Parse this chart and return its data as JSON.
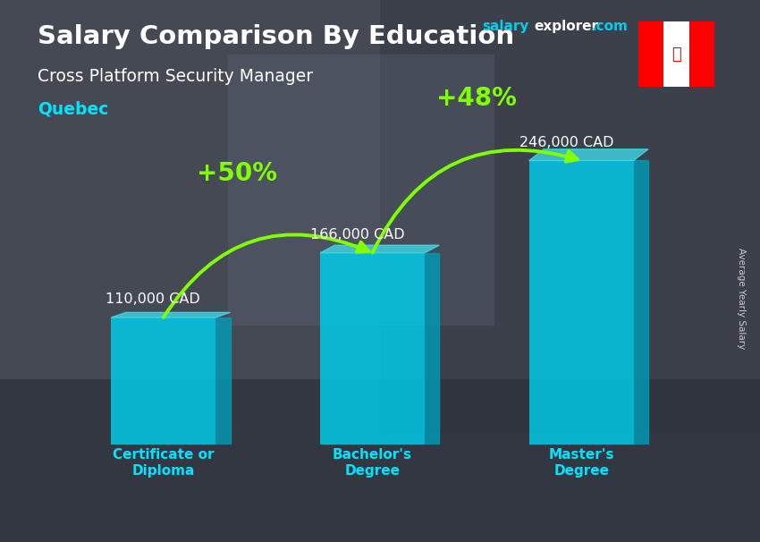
{
  "title": "Salary Comparison By Education",
  "subtitle": "Cross Platform Security Manager",
  "location": "Quebec",
  "website_text": "salaryexplorer.com",
  "website_salary_part": "salary",
  "website_explorer_part": "explorer",
  "website_com_part": ".com",
  "categories": [
    "Certificate or\nDiploma",
    "Bachelor's\nDegree",
    "Master's\nDegree"
  ],
  "values": [
    110000,
    166000,
    246000
  ],
  "value_labels": [
    "110,000 CAD",
    "166,000 CAD",
    "246,000 CAD"
  ],
  "pct_labels": [
    "+50%",
    "+48%"
  ],
  "bar_color_main": "#00CFED",
  "bar_color_right": "#009BB5",
  "bar_color_top": "#40E0F0",
  "bar_alpha": 0.82,
  "title_color": "#FFFFFF",
  "subtitle_color": "#FFFFFF",
  "location_color": "#00E5FF",
  "value_label_color": "#FFFFFF",
  "pct_color": "#80FF00",
  "category_label_color": "#00E5FF",
  "right_label": "Average Yearly Salary",
  "bg_dark": "#2a2f3a",
  "figsize": [
    8.5,
    6.06
  ],
  "dpi": 100
}
